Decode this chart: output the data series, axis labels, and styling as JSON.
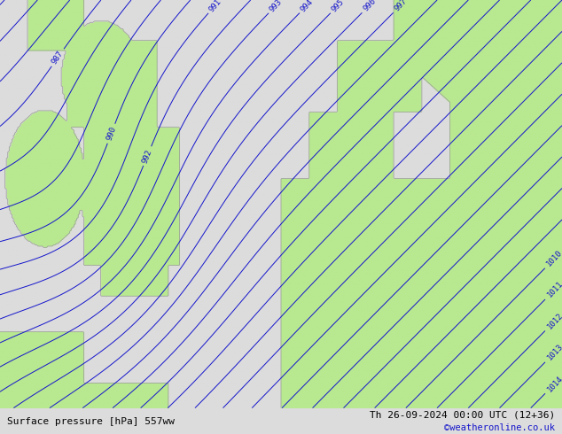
{
  "title_left": "Surface pressure [hPa] 557ww",
  "title_right": "Th 26-09-2024 00:00 UTC (12+36)",
  "copyright": "©weatheronline.co.uk",
  "bg_color": "#dcdcdc",
  "land_color": "#b8e890",
  "sea_color": "#dcdcdc",
  "isobar_color": "#1414cc",
  "coast_color": "#999999",
  "label_color": "#1414cc",
  "figsize": [
    6.34,
    4.9
  ],
  "dpi": 100
}
